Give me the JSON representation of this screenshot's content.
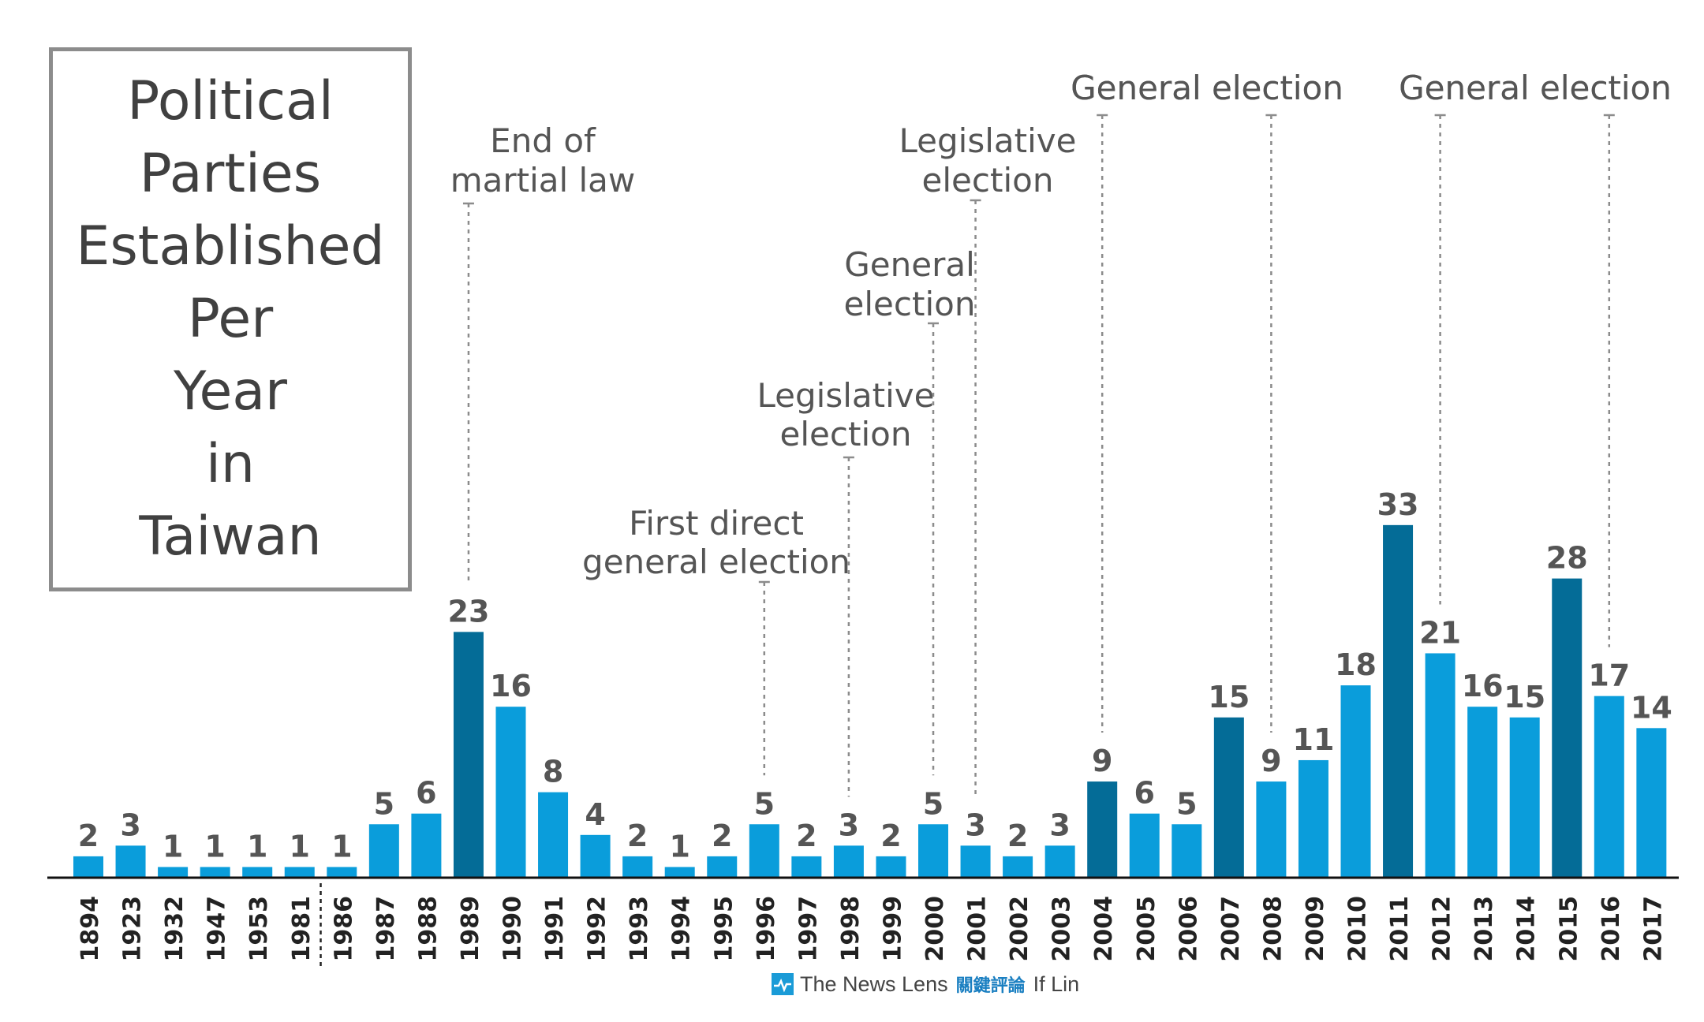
{
  "chart_data": {
    "type": "bar",
    "title": "Political Parties Established Per Year in Taiwan",
    "title_lines": [
      "Political",
      "Parties",
      "Established",
      "Per",
      "Year",
      "in",
      "Taiwan"
    ],
    "categories": [
      "1894",
      "1923",
      "1932",
      "1947",
      "1953",
      "1981",
      "1986",
      "1987",
      "1988",
      "1989",
      "1990",
      "1991",
      "1992",
      "1993",
      "1994",
      "1995",
      "1996",
      "1997",
      "1998",
      "1999",
      "2000",
      "2001",
      "2002",
      "2003",
      "2004",
      "2005",
      "2006",
      "2007",
      "2008",
      "2009",
      "2010",
      "2011",
      "2012",
      "2013",
      "2014",
      "2015",
      "2016",
      "2017"
    ],
    "values": [
      2,
      3,
      1,
      1,
      1,
      1,
      1,
      5,
      6,
      23,
      16,
      8,
      4,
      2,
      1,
      2,
      5,
      2,
      3,
      2,
      5,
      3,
      2,
      3,
      9,
      6,
      5,
      15,
      9,
      11,
      18,
      33,
      21,
      16,
      15,
      28,
      17,
      14
    ],
    "highlighted": [
      "1989",
      "2004",
      "2007",
      "2011",
      "2015"
    ],
    "ylim": [
      0,
      33
    ],
    "axis_break_between": [
      "1981",
      "1986"
    ],
    "colors": {
      "bar": "#0a9ddb",
      "highlight": "#046c97",
      "label": "#555555",
      "annotation": "#555555",
      "leader": "#8c8c8c",
      "axis": "#111111"
    },
    "annotations": [
      {
        "year": "1989",
        "lines": [
          "End of",
          "martial law"
        ]
      },
      {
        "year": "1996",
        "lines": [
          "First direct",
          "general election"
        ]
      },
      {
        "year": "1998",
        "lines": [
          "Legislative",
          "election"
        ]
      },
      {
        "year": "2000",
        "lines": [
          "General",
          "election"
        ]
      },
      {
        "year": "2001",
        "lines": [
          "Legislative",
          "election"
        ]
      },
      {
        "year": "2004",
        "lines": [
          "General election"
        ]
      },
      {
        "year": "2008",
        "lines": [
          "General election"
        ]
      },
      {
        "year": "2012",
        "lines": [
          "General election"
        ]
      },
      {
        "year": "2016",
        "lines": [
          "General election"
        ]
      }
    ]
  },
  "footer": {
    "brand": "The News Lens",
    "brand_cn": "關鍵評論",
    "author": "If Lin"
  }
}
